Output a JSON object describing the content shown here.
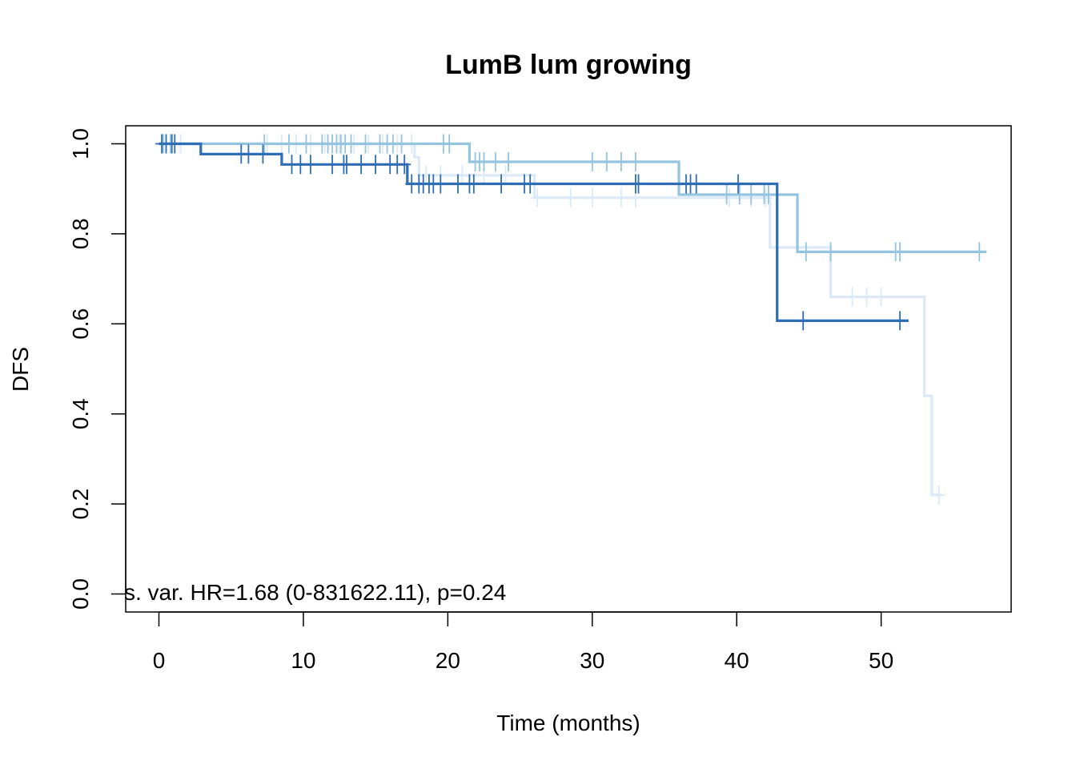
{
  "chart_data": {
    "type": "line",
    "subtype": "kaplan-meier step curves",
    "title": "LumB lum growing",
    "xlabel": "Time (months)",
    "ylabel": "DFS",
    "xlim": [
      -2.3,
      59
    ],
    "ylim": [
      -0.04,
      1.04
    ],
    "x_ticks": [
      0,
      10,
      20,
      30,
      40,
      50
    ],
    "y_ticks": [
      0.0,
      0.2,
      0.4,
      0.6,
      0.8,
      1.0
    ],
    "x_tick_labels": [
      "0",
      "10",
      "20",
      "30",
      "40",
      "50"
    ],
    "y_tick_labels": [
      "0.0",
      "0.2",
      "0.4",
      "0.6",
      "0.8",
      "1.0"
    ],
    "annotation": "s. var. HR=1.68 (0-831622.11), p=0.24",
    "grid": false,
    "legend": "none",
    "series": [
      {
        "color": "#dce9f6",
        "steps": [
          [
            0,
            1.0
          ],
          [
            17.7,
            0.97
          ],
          [
            18.0,
            0.93
          ],
          [
            26.0,
            0.88
          ],
          [
            42.3,
            0.77
          ],
          [
            46.5,
            0.66
          ],
          [
            53.0,
            0.44
          ],
          [
            53.5,
            0.22
          ],
          [
            54.2,
            0.22
          ]
        ],
        "censor_x": [
          0.5,
          1.5,
          7.5,
          8.5,
          9.5,
          10.5,
          11.5,
          12.5,
          13.5,
          14.5,
          15.5,
          16.5,
          17.5,
          18.5,
          19.5,
          21.0,
          22.5,
          24.0,
          26.2,
          28.5,
          30.0,
          32.0,
          33.0,
          39.5,
          41.0,
          42.0,
          48.0,
          49.0,
          50.0,
          54.0
        ]
      },
      {
        "color": "#94c4df",
        "steps": [
          [
            0,
            1.0
          ],
          [
            21.5,
            0.96
          ],
          [
            36.0,
            0.887
          ],
          [
            44.2,
            0.76
          ],
          [
            57.3,
            0.76
          ]
        ],
        "censor_x": [
          0.3,
          0.8,
          7.3,
          9.0,
          10.2,
          11.3,
          11.7,
          12.0,
          12.3,
          12.6,
          12.9,
          13.3,
          14.3,
          15.3,
          15.8,
          16.2,
          16.8,
          19.7,
          20.1,
          21.9,
          22.2,
          22.5,
          23.3,
          24.2,
          30.0,
          31.0,
          32.0,
          33.0,
          39.3,
          40.2,
          41.0,
          41.9,
          42.2,
          44.8,
          46.5,
          51.0,
          51.3,
          56.8
        ]
      },
      {
        "color": "#2f6db4",
        "steps": [
          [
            0,
            1.0
          ],
          [
            2.9,
            0.977
          ],
          [
            8.5,
            0.954
          ],
          [
            17.2,
            0.911
          ],
          [
            42.8,
            0.607
          ],
          [
            51.9,
            0.607
          ]
        ],
        "censor_x": [
          0.2,
          0.5,
          0.9,
          1.1,
          5.7,
          6.2,
          7.2,
          9.2,
          9.8,
          10.5,
          12.0,
          12.8,
          13.0,
          14.0,
          15.0,
          16.0,
          16.5,
          17.0,
          17.5,
          18.0,
          18.3,
          18.7,
          19.0,
          19.5,
          20.7,
          21.5,
          21.8,
          23.7,
          25.3,
          25.7,
          33.0,
          33.2,
          36.5,
          36.8,
          37.2,
          40.1,
          44.6,
          51.3
        ]
      }
    ]
  }
}
